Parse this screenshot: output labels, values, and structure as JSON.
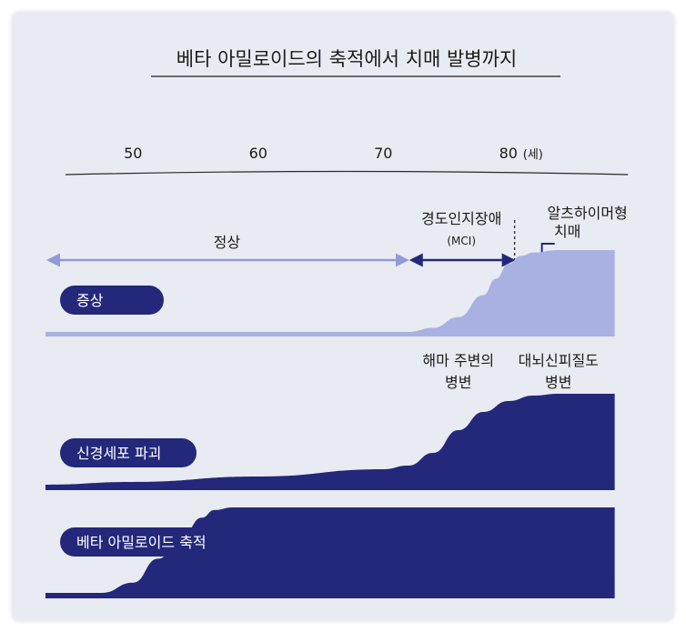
{
  "chart_data": {
    "type": "area",
    "title": "베타 아밀로이드의 축적에서 치매 발병까지",
    "x_axis": {
      "ticks": [
        50,
        60,
        70,
        80
      ],
      "unit_label": "(세)",
      "range": [
        43,
        90
      ]
    },
    "stages": [
      {
        "label": "정상",
        "from": 43,
        "to": 72
      },
      {
        "label_line1": "경도인지장애",
        "label_line2": "(MCI)",
        "from": 72,
        "to": 80.5
      },
      {
        "label_line1": "알츠하이머형",
        "label_line2": "치매",
        "from": 80.5,
        "to": 88
      }
    ],
    "series": [
      {
        "name": "증상",
        "color": "#a9b1e2",
        "x": [
          43,
          72,
          74,
          76,
          78,
          79,
          80,
          81,
          82,
          84,
          86,
          88.5
        ],
        "y": [
          0.0,
          0.0,
          0.05,
          0.18,
          0.45,
          0.65,
          0.83,
          0.93,
          0.97,
          1.0,
          1.0,
          1.0
        ]
      },
      {
        "name": "신경세포 파괴",
        "color": "#23287a",
        "x": [
          43,
          50,
          60,
          70,
          72,
          74,
          76,
          78,
          80,
          82,
          84,
          86,
          88.5
        ],
        "y": [
          0.0,
          0.03,
          0.09,
          0.17,
          0.21,
          0.35,
          0.6,
          0.8,
          0.92,
          0.98,
          1.0,
          1.0,
          1.0
        ]
      },
      {
        "name": "베타 아밀로이드 축적",
        "color": "#23287a",
        "x": [
          43,
          47.5,
          50,
          52,
          54,
          55.5,
          56.5,
          58,
          60,
          70,
          80,
          88.5
        ],
        "y": [
          0.0,
          0.0,
          0.12,
          0.4,
          0.68,
          0.88,
          0.97,
          1.0,
          1.0,
          1.0,
          1.0,
          1.0
        ]
      }
    ],
    "annotations": [
      {
        "text_line1": "해마 주변의",
        "text_line2": "병변",
        "x": 76
      },
      {
        "text_line1": "대뇌신피질도",
        "text_line2": "병변",
        "x": 84
      }
    ],
    "colors": {
      "frame_bg": "#e9ebf2",
      "dark_navy": "#23287a",
      "light_periwinkle": "#a9b1e2",
      "arrow_light": "#8f9ad6",
      "text_dark": "#1b1b1b"
    }
  }
}
